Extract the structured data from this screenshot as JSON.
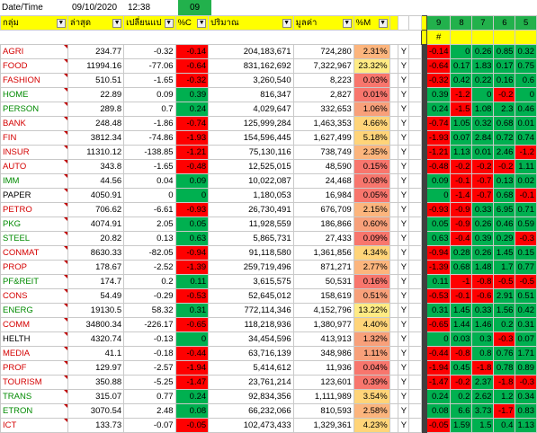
{
  "topbar": {
    "label": "Date/Time",
    "date": "09/10/2020",
    "time": "12:38",
    "col_tag": "09",
    "right_headers": [
      "9",
      "8",
      "7",
      "6",
      "5"
    ]
  },
  "headers": {
    "group": "กลุ่ม",
    "last": "ล่าสุด",
    "change": "เปลี่ยนแป",
    "pct": "%C",
    "volume": "ปริมาณ",
    "value": "มูลค่า",
    "pct_mv": "%M",
    "flag": "",
    "hash": "#"
  },
  "colors": {
    "neg": "#ff0000",
    "pos": "#00b050",
    "header": "#ffff00",
    "right_header": "#22b14c"
  },
  "rows": [
    {
      "name": "AGRI",
      "last": "234.77",
      "chg": "-0.32",
      "pc": "-0.14",
      "vol": "204,183,671",
      "val": "724,280",
      "mv": "2.31%",
      "y": "Y",
      "h": [
        "-0.14",
        "0",
        "0.26",
        "0.85",
        "0.32"
      ]
    },
    {
      "name": "FOOD",
      "last": "11994.16",
      "chg": "-77.06",
      "pc": "-0.64",
      "vol": "831,162,692",
      "val": "7,322,967",
      "mv": "23.32%",
      "y": "Y",
      "h": [
        "-0.64",
        "0.17",
        "1.83",
        "0.17",
        "0.75"
      ]
    },
    {
      "name": "FASHION",
      "last": "510.51",
      "chg": "-1.65",
      "pc": "-0.32",
      "vol": "3,260,540",
      "val": "8,223",
      "mv": "0.03%",
      "y": "Y",
      "h": [
        "-0.32",
        "0.42",
        "0.22",
        "0.16",
        "0.6"
      ]
    },
    {
      "name": "HOME",
      "last": "22.89",
      "chg": "0.09",
      "pc": "0.39",
      "vol": "816,347",
      "val": "2,827",
      "mv": "0.01%",
      "y": "Y",
      "h": [
        "0.39",
        "-1.2",
        "0",
        "-0.2",
        "0"
      ]
    },
    {
      "name": "PERSON",
      "last": "289.8",
      "chg": "0.7",
      "pc": "0.24",
      "vol": "4,029,647",
      "val": "332,653",
      "mv": "1.06%",
      "y": "Y",
      "h": [
        "0.24",
        "-1.5",
        "1.08",
        "2.3",
        "0.46"
      ]
    },
    {
      "name": "BANK",
      "last": "248.48",
      "chg": "-1.86",
      "pc": "-0.74",
      "vol": "125,999,284",
      "val": "1,463,353",
      "mv": "4.66%",
      "y": "Y",
      "h": [
        "-0.74",
        "1.05",
        "0.32",
        "0.68",
        "0.01"
      ]
    },
    {
      "name": "FIN",
      "last": "3812.34",
      "chg": "-74.86",
      "pc": "-1.93",
      "vol": "154,596,445",
      "val": "1,627,499",
      "mv": "5.18%",
      "y": "Y",
      "h": [
        "-1.93",
        "0.07",
        "2.84",
        "0.72",
        "0.74"
      ]
    },
    {
      "name": "INSUR",
      "last": "11310.12",
      "chg": "-138.85",
      "pc": "-1.21",
      "vol": "75,130,116",
      "val": "738,749",
      "mv": "2.35%",
      "y": "Y",
      "h": [
        "-1.21",
        "1.13",
        "0.01",
        "2.46",
        "-1.2"
      ]
    },
    {
      "name": "AUTO",
      "last": "343.8",
      "chg": "-1.65",
      "pc": "-0.48",
      "vol": "12,525,015",
      "val": "48,590",
      "mv": "0.15%",
      "y": "Y",
      "h": [
        "-0.48",
        "-0.2",
        "-0.2",
        "-0.2",
        "1.11"
      ]
    },
    {
      "name": "IMM",
      "last": "44.56",
      "chg": "0.04",
      "pc": "0.09",
      "vol": "10,022,087",
      "val": "24,468",
      "mv": "0.08%",
      "y": "Y",
      "h": [
        "0.09",
        "-0.1",
        "-0.7",
        "0.13",
        "0.02"
      ]
    },
    {
      "name": "PAPER",
      "last": "4050.91",
      "chg": "0",
      "pc": "0",
      "vol": "1,180,053",
      "val": "16,984",
      "mv": "0.05%",
      "y": "Y",
      "h": [
        "0",
        "-1.4",
        "-0.7",
        "0.68",
        "-0.1"
      ]
    },
    {
      "name": "PETRO",
      "last": "706.62",
      "chg": "-6.61",
      "pc": "-0.93",
      "vol": "26,730,491",
      "val": "676,709",
      "mv": "2.15%",
      "y": "Y",
      "h": [
        "-0.93",
        "-0.9",
        "0.33",
        "6.95",
        "0.71"
      ]
    },
    {
      "name": "PKG",
      "last": "4074.91",
      "chg": "2.05",
      "pc": "0.05",
      "vol": "11,928,559",
      "val": "186,866",
      "mv": "0.60%",
      "y": "Y",
      "h": [
        "0.05",
        "-0.9",
        "0.26",
        "0.46",
        "0.59"
      ]
    },
    {
      "name": "STEEL",
      "last": "20.82",
      "chg": "0.13",
      "pc": "0.63",
      "vol": "5,865,731",
      "val": "27,433",
      "mv": "0.09%",
      "y": "Y",
      "h": [
        "0.63",
        "-0.4",
        "0.39",
        "0.29",
        "-0.3"
      ]
    },
    {
      "name": "CONMAT",
      "last": "8630.33",
      "chg": "-82.05",
      "pc": "-0.94",
      "vol": "91,118,580",
      "val": "1,361,856",
      "mv": "4.34%",
      "y": "Y",
      "h": [
        "-0.94",
        "0.28",
        "0.26",
        "1.45",
        "0.15"
      ]
    },
    {
      "name": "PROP",
      "last": "178.67",
      "chg": "-2.52",
      "pc": "-1.39",
      "vol": "259,719,496",
      "val": "871,271",
      "mv": "2.77%",
      "y": "Y",
      "h": [
        "-1.39",
        "0.68",
        "1.48",
        "1.7",
        "0.77"
      ]
    },
    {
      "name": "PF&REIT",
      "last": "174.7",
      "chg": "0.2",
      "pc": "0.11",
      "vol": "3,615,575",
      "val": "50,531",
      "mv": "0.16%",
      "y": "Y",
      "h": [
        "0.11",
        "-1",
        "-0.8",
        "-0.5",
        "-0.5"
      ]
    },
    {
      "name": "CONS",
      "last": "54.49",
      "chg": "-0.29",
      "pc": "-0.53",
      "vol": "52,645,012",
      "val": "158,619",
      "mv": "0.51%",
      "y": "Y",
      "h": [
        "-0.53",
        "-0.1",
        "-0.6",
        "2.91",
        "0.51"
      ]
    },
    {
      "name": "ENERG",
      "last": "19130.5",
      "chg": "58.32",
      "pc": "0.31",
      "vol": "772,114,346",
      "val": "4,152,796",
      "mv": "13.22%",
      "y": "Y",
      "h": [
        "0.31",
        "1.45",
        "0.33",
        "1.56",
        "0.42"
      ]
    },
    {
      "name": "COMM",
      "last": "34800.34",
      "chg": "-226.17",
      "pc": "-0.65",
      "vol": "118,218,936",
      "val": "1,380,977",
      "mv": "4.40%",
      "y": "Y",
      "h": [
        "-0.65",
        "1.44",
        "1.46",
        "0.2",
        "0.31"
      ]
    },
    {
      "name": "HELTH",
      "last": "4320.74",
      "chg": "-0.13",
      "pc": "0",
      "vol": "34,454,596",
      "val": "413,913",
      "mv": "1.32%",
      "y": "Y",
      "h": [
        "0",
        "0.03",
        "0.3",
        "-0.3",
        "0.07"
      ]
    },
    {
      "name": "MEDIA",
      "last": "41.1",
      "chg": "-0.18",
      "pc": "-0.44",
      "vol": "63,716,139",
      "val": "348,986",
      "mv": "1.11%",
      "y": "Y",
      "h": [
        "-0.44",
        "-0.8",
        "0.8",
        "0.76",
        "1.71"
      ]
    },
    {
      "name": "PROF",
      "last": "129.97",
      "chg": "-2.57",
      "pc": "-1.94",
      "vol": "5,414,612",
      "val": "11,936",
      "mv": "0.04%",
      "y": "Y",
      "h": [
        "-1.94",
        "0.45",
        "-1.8",
        "0.78",
        "0.89"
      ]
    },
    {
      "name": "TOURISM",
      "last": "350.88",
      "chg": "-5.25",
      "pc": "-1.47",
      "vol": "23,761,214",
      "val": "123,601",
      "mv": "0.39%",
      "y": "Y",
      "h": [
        "-1.47",
        "-0.2",
        "2.37",
        "-1.8",
        "-0.3"
      ]
    },
    {
      "name": "TRANS",
      "last": "315.07",
      "chg": "0.77",
      "pc": "0.24",
      "vol": "92,834,356",
      "val": "1,111,989",
      "mv": "3.54%",
      "y": "Y",
      "h": [
        "0.24",
        "0.2",
        "2.62",
        "1.2",
        "0.34"
      ]
    },
    {
      "name": "ETRON",
      "last": "3070.54",
      "chg": "2.48",
      "pc": "0.08",
      "vol": "66,232,066",
      "val": "810,593",
      "mv": "2.58%",
      "y": "Y",
      "h": [
        "0.08",
        "6.6",
        "3.73",
        "-1.7",
        "0.83"
      ]
    },
    {
      "name": "ICT",
      "last": "133.73",
      "chg": "-0.07",
      "pc": "-0.05",
      "vol": "102,473,433",
      "val": "1,329,361",
      "mv": "4.23%",
      "y": "Y",
      "h": [
        "-0.05",
        "1.59",
        "1.5",
        "0.4",
        "1.13"
      ]
    }
  ]
}
